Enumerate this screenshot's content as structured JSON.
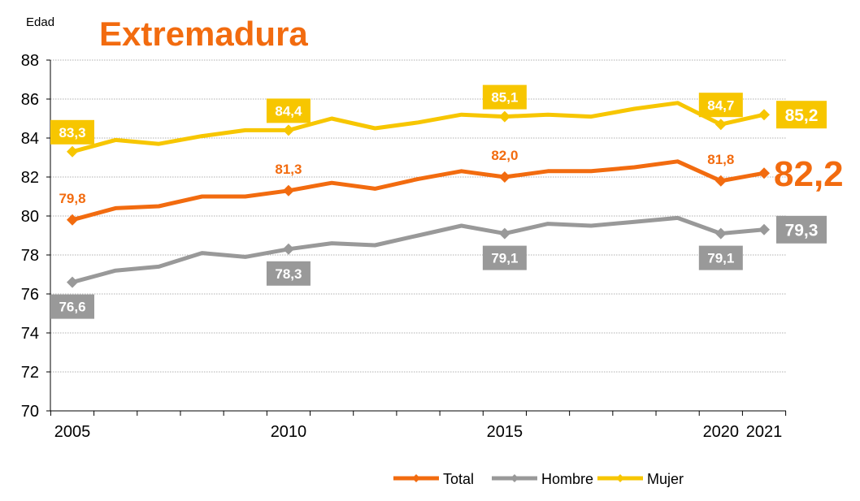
{
  "colors": {
    "total": "#F26B0F",
    "hombre": "#999999",
    "mujer": "#F7C600",
    "title": "#F26B0F",
    "grid": "#b0b0b0",
    "axis": "#000000"
  },
  "chart_data": {
    "type": "line",
    "title": "Extremadura",
    "ylabel": "Edad",
    "xlabel": "",
    "ylim": [
      70,
      88
    ],
    "yticks": [
      "70",
      "72",
      "74",
      "76",
      "78",
      "80",
      "82",
      "84",
      "86",
      "88"
    ],
    "xlim": [
      2005,
      2021
    ],
    "xticks": [
      {
        "year": 2005,
        "label": "2005"
      },
      {
        "year": 2010,
        "label": "2010"
      },
      {
        "year": 2015,
        "label": "2015"
      },
      {
        "year": 2020,
        "label": "2020"
      },
      {
        "year": 2021,
        "label": "2021"
      }
    ],
    "grid": true,
    "legend_position": "bottom-right",
    "x": [
      2005,
      2006,
      2007,
      2008,
      2009,
      2010,
      2011,
      2012,
      2013,
      2014,
      2015,
      2016,
      2017,
      2018,
      2019,
      2020,
      2021
    ],
    "series": [
      {
        "key": "total",
        "name": "Total",
        "values": [
          79.8,
          80.4,
          80.5,
          81.0,
          81.0,
          81.3,
          81.7,
          81.4,
          81.9,
          82.3,
          82.0,
          82.3,
          82.3,
          82.5,
          82.8,
          81.8,
          82.2
        ],
        "labels": [
          {
            "year": 2005,
            "text": "79,8",
            "style": "text",
            "pos": "above"
          },
          {
            "year": 2010,
            "text": "81,3",
            "style": "text",
            "pos": "above"
          },
          {
            "year": 2015,
            "text": "82,0",
            "style": "text",
            "pos": "above"
          },
          {
            "year": 2020,
            "text": "81,8",
            "style": "text",
            "pos": "above"
          },
          {
            "year": 2021,
            "text": "82,2",
            "style": "big",
            "pos": "right"
          }
        ]
      },
      {
        "key": "hombre",
        "name": "Hombre",
        "values": [
          76.6,
          77.2,
          77.4,
          78.1,
          77.9,
          78.3,
          78.6,
          78.5,
          79.0,
          79.5,
          79.1,
          79.6,
          79.5,
          79.7,
          79.9,
          79.1,
          79.3
        ],
        "labels": [
          {
            "year": 2005,
            "text": "76,6",
            "style": "box",
            "pos": "below"
          },
          {
            "year": 2010,
            "text": "78,3",
            "style": "box",
            "pos": "below"
          },
          {
            "year": 2015,
            "text": "79,1",
            "style": "box",
            "pos": "below"
          },
          {
            "year": 2020,
            "text": "79,1",
            "style": "box",
            "pos": "below"
          },
          {
            "year": 2021,
            "text": "79,3",
            "style": "box",
            "pos": "right"
          }
        ]
      },
      {
        "key": "mujer",
        "name": "Mujer",
        "values": [
          83.3,
          83.9,
          83.7,
          84.1,
          84.4,
          84.4,
          85.0,
          84.5,
          84.8,
          85.2,
          85.1,
          85.2,
          85.1,
          85.5,
          85.8,
          84.7,
          85.2
        ],
        "labels": [
          {
            "year": 2005,
            "text": "83,3",
            "style": "box",
            "pos": "above"
          },
          {
            "year": 2010,
            "text": "84,4",
            "style": "box",
            "pos": "above"
          },
          {
            "year": 2015,
            "text": "85,1",
            "style": "box",
            "pos": "above"
          },
          {
            "year": 2020,
            "text": "84,7",
            "style": "box",
            "pos": "above"
          },
          {
            "year": 2021,
            "text": "85,2",
            "style": "box",
            "pos": "right"
          }
        ]
      }
    ]
  }
}
